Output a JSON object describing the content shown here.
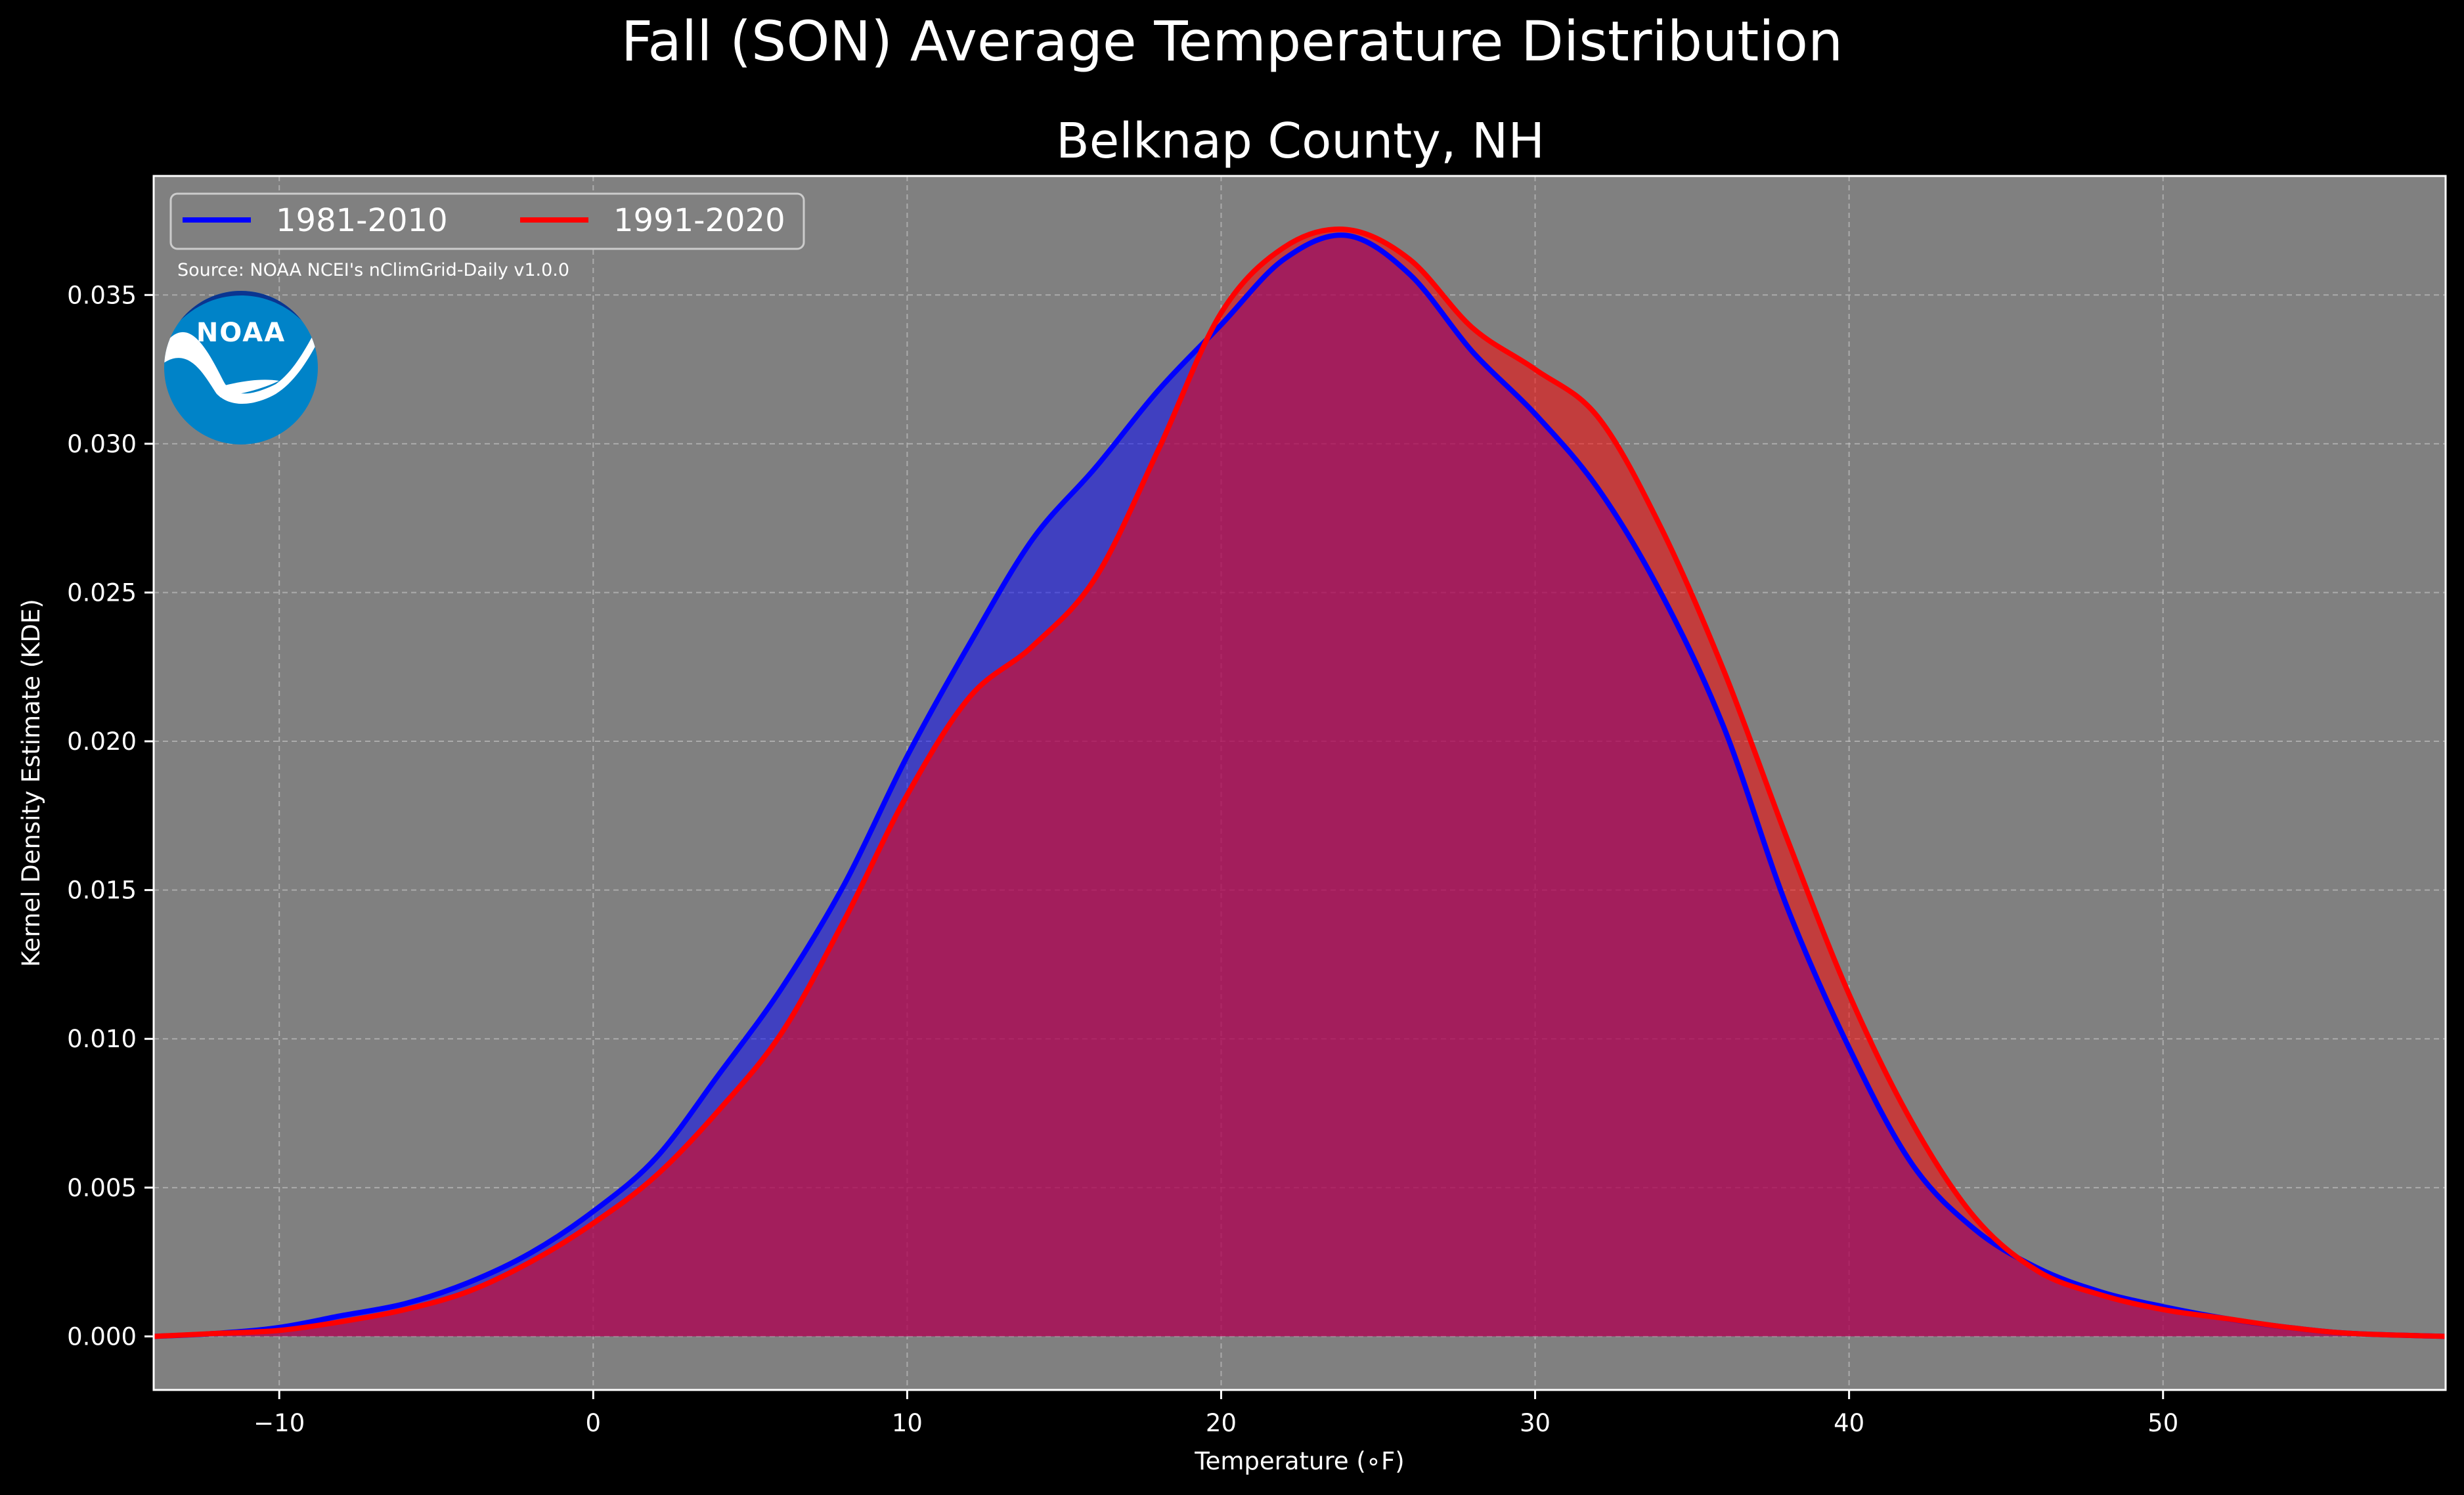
{
  "chart_data": {
    "type": "area",
    "title": "Fall (SON) Average Temperature Distribution",
    "subtitle": "Belknap County, NH",
    "xlabel": "Temperature (∘F)",
    "ylabel": "Kernel Density Estimate (KDE)",
    "xlim": [
      -14,
      59
    ],
    "ylim": [
      -0.0018,
      0.039
    ],
    "x_ticks": [
      -10,
      0,
      10,
      20,
      30,
      40,
      50
    ],
    "x_tick_labels": [
      "−10",
      "0",
      "10",
      "20",
      "30",
      "40",
      "50"
    ],
    "y_ticks": [
      0.0,
      0.005,
      0.01,
      0.015,
      0.02,
      0.025,
      0.03,
      0.035
    ],
    "y_tick_labels": [
      "0.000",
      "0.005",
      "0.010",
      "0.015",
      "0.020",
      "0.025",
      "0.030",
      "0.035"
    ],
    "grid": true,
    "legend_position": "top-left",
    "source": "Source: NOAA NCEI's nClimGrid-Daily v1.0.0",
    "logo_text": "NOAA",
    "colors": {
      "background": "#000000",
      "axes_face": "#808080",
      "series_1": "#0000ff",
      "series_2": "#ff0000",
      "fill_overlap": "#9e1f5c"
    },
    "series": [
      {
        "name": "1981-2010",
        "color": "#0000ff",
        "points": [
          [
            -14,
            0.0
          ],
          [
            -12,
            0.0001
          ],
          [
            -10,
            0.0003
          ],
          [
            -8,
            0.0007
          ],
          [
            -6,
            0.0011
          ],
          [
            -4,
            0.0018
          ],
          [
            -2,
            0.0028
          ],
          [
            0,
            0.0042
          ],
          [
            2,
            0.006
          ],
          [
            4,
            0.0088
          ],
          [
            6,
            0.0117
          ],
          [
            8,
            0.0152
          ],
          [
            10,
            0.0195
          ],
          [
            12,
            0.0233
          ],
          [
            14,
            0.0268
          ],
          [
            16,
            0.0292
          ],
          [
            18,
            0.0318
          ],
          [
            20,
            0.034
          ],
          [
            22,
            0.0362
          ],
          [
            24,
            0.037
          ],
          [
            26,
            0.0357
          ],
          [
            28,
            0.0331
          ],
          [
            30,
            0.031
          ],
          [
            32,
            0.0285
          ],
          [
            34,
            0.025
          ],
          [
            36,
            0.0205
          ],
          [
            38,
            0.0145
          ],
          [
            40,
            0.0097
          ],
          [
            42,
            0.0058
          ],
          [
            44,
            0.0036
          ],
          [
            46,
            0.0023
          ],
          [
            48,
            0.0015
          ],
          [
            50,
            0.001
          ],
          [
            52,
            0.0006
          ],
          [
            54,
            0.0003
          ],
          [
            56,
            0.0001
          ],
          [
            59,
            0.0
          ]
        ]
      },
      {
        "name": "1991-2020",
        "color": "#ff0000",
        "points": [
          [
            -14,
            0.0
          ],
          [
            -12,
            0.0001
          ],
          [
            -10,
            0.0002
          ],
          [
            -8,
            0.0005
          ],
          [
            -6,
            0.0009
          ],
          [
            -4,
            0.0015
          ],
          [
            -2,
            0.0025
          ],
          [
            0,
            0.0038
          ],
          [
            2,
            0.0054
          ],
          [
            4,
            0.0076
          ],
          [
            6,
            0.0102
          ],
          [
            8,
            0.014
          ],
          [
            10,
            0.0182
          ],
          [
            12,
            0.0215
          ],
          [
            14,
            0.0232
          ],
          [
            16,
            0.0255
          ],
          [
            18,
            0.0298
          ],
          [
            20,
            0.0344
          ],
          [
            22,
            0.0366
          ],
          [
            24,
            0.0372
          ],
          [
            26,
            0.0362
          ],
          [
            28,
            0.0339
          ],
          [
            30,
            0.0325
          ],
          [
            32,
            0.0309
          ],
          [
            34,
            0.0272
          ],
          [
            36,
            0.0224
          ],
          [
            38,
            0.0168
          ],
          [
            40,
            0.0115
          ],
          [
            42,
            0.0072
          ],
          [
            44,
            0.004
          ],
          [
            46,
            0.0022
          ],
          [
            48,
            0.0014
          ],
          [
            50,
            0.0009
          ],
          [
            52,
            0.0006
          ],
          [
            54,
            0.0003
          ],
          [
            56,
            0.0001
          ],
          [
            59,
            0.0
          ]
        ]
      }
    ]
  }
}
